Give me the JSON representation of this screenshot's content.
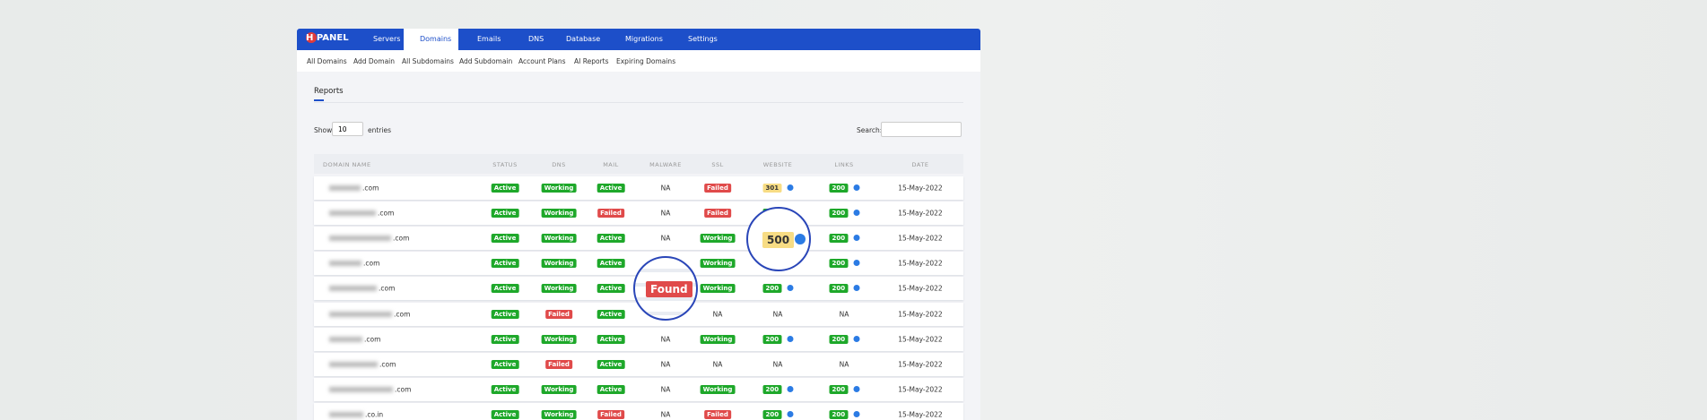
{
  "nav": {
    "logo": "H PANEL",
    "items": [
      "Servers",
      "Domains",
      "Emails",
      "DNS",
      "Database",
      "Migrations",
      "Settings"
    ]
  },
  "subnav": [
    "All Domains",
    "Add Domain",
    "All Subdomains",
    "Add Subdomain",
    "Account Plans",
    "AI Reports",
    "Expiring Domains"
  ],
  "title": "Reports",
  "controls": {
    "show": "Show",
    "entries_value": "10",
    "entries": "entries",
    "search": "Search:"
  },
  "table": {
    "headers": [
      "DOMAIN NAME",
      "STATUS",
      "DNS",
      "MAIL",
      "MALWARE",
      "SSL",
      "WEBSITE",
      "LINKS",
      "DATE"
    ],
    "rows": [
      [
        ".com",
        "Active",
        "Working",
        "Active",
        "NA",
        "Failed",
        "301",
        "200",
        "15-May-2022"
      ],
      [
        ".com",
        "Active",
        "Working",
        "Failed",
        "NA",
        "Failed",
        "200",
        "200",
        "15-May-2022"
      ],
      [
        ".com",
        "Active",
        "Working",
        "Active",
        "NA",
        "Working",
        null,
        "200",
        "15-May-2022"
      ],
      [
        ".com",
        "Active",
        "Working",
        "Active",
        null,
        "Working",
        null,
        "200",
        "15-May-2022"
      ],
      [
        ".com",
        "Active",
        "Working",
        "Active",
        null,
        "Working",
        "200",
        "200",
        "15-May-2022"
      ],
      [
        ".com",
        "Active",
        "Failed",
        "Active",
        null,
        "NA",
        "NA",
        "NA",
        "15-May-2022"
      ],
      [
        ".com",
        "Active",
        "Working",
        "Active",
        "NA",
        "Working",
        "200",
        "200",
        "15-May-2022"
      ],
      [
        ".com",
        "Active",
        "Failed",
        "Active",
        "NA",
        "NA",
        "NA",
        "NA",
        "15-May-2022"
      ],
      [
        ".com",
        "Active",
        "Working",
        "Active",
        "NA",
        "Working",
        "200",
        "200",
        "15-May-2022"
      ],
      [
        ".co.in",
        "Active",
        "Working",
        "Failed",
        "NA",
        "Failed",
        "200",
        "200",
        "15-May-2022"
      ]
    ]
  },
  "callouts": [
    "500",
    "Found"
  ]
}
